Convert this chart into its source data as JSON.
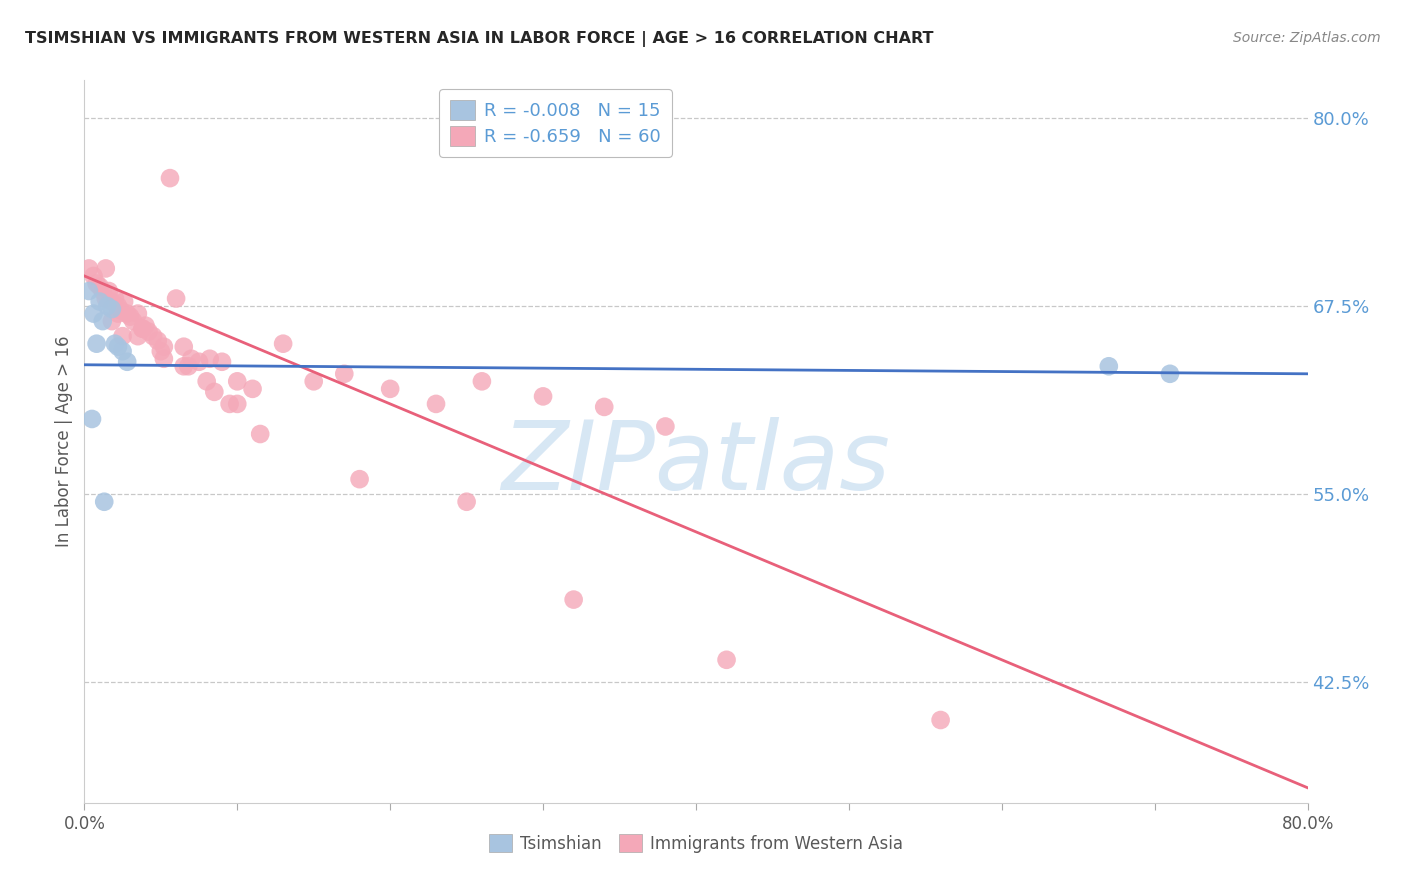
{
  "title": "TSIMSHIAN VS IMMIGRANTS FROM WESTERN ASIA IN LABOR FORCE | AGE > 16 CORRELATION CHART",
  "source": "Source: ZipAtlas.com",
  "ylabel": "In Labor Force | Age > 16",
  "xlim": [
    0.0,
    0.8
  ],
  "ylim": [
    0.345,
    0.825
  ],
  "yticks": [
    0.425,
    0.55,
    0.675,
    0.8
  ],
  "ytick_labels": [
    "42.5%",
    "55.0%",
    "67.5%",
    "80.0%"
  ],
  "xticks": [
    0.0,
    0.1,
    0.2,
    0.3,
    0.4,
    0.5,
    0.6,
    0.7,
    0.8
  ],
  "xtick_labels": [
    "0.0%",
    "",
    "",
    "",
    "",
    "",
    "",
    "",
    "80.0%"
  ],
  "background_color": "#ffffff",
  "grid_color": "#c8c8c8",
  "watermark": "ZIPatlas",
  "watermark_color": "#bdd7ee",
  "blue_R": "-0.008",
  "blue_N": "15",
  "pink_R": "-0.659",
  "pink_N": "60",
  "blue_color": "#a8c4e0",
  "pink_color": "#f4a8b8",
  "blue_line_color": "#4472c4",
  "pink_line_color": "#e8607a",
  "tick_color": "#5b9bd5",
  "label_color": "#595959",
  "blue_x": [
    0.003,
    0.01,
    0.006,
    0.015,
    0.018,
    0.012,
    0.008,
    0.02,
    0.022,
    0.025,
    0.028,
    0.67,
    0.71,
    0.005,
    0.013
  ],
  "blue_y": [
    0.685,
    0.678,
    0.67,
    0.675,
    0.673,
    0.665,
    0.65,
    0.65,
    0.648,
    0.645,
    0.638,
    0.635,
    0.63,
    0.6,
    0.545
  ],
  "pink_x": [
    0.003,
    0.006,
    0.008,
    0.01,
    0.012,
    0.014,
    0.016,
    0.018,
    0.02,
    0.022,
    0.024,
    0.026,
    0.028,
    0.03,
    0.032,
    0.035,
    0.038,
    0.04,
    0.042,
    0.045,
    0.048,
    0.052,
    0.056,
    0.06,
    0.065,
    0.07,
    0.075,
    0.082,
    0.09,
    0.1,
    0.11,
    0.13,
    0.15,
    0.17,
    0.2,
    0.23,
    0.26,
    0.3,
    0.34,
    0.38,
    0.014,
    0.022,
    0.035,
    0.05,
    0.065,
    0.08,
    0.095,
    0.115,
    0.25,
    0.56,
    0.018,
    0.025,
    0.038,
    0.052,
    0.068,
    0.085,
    0.1,
    0.18,
    0.32,
    0.42
  ],
  "pink_y": [
    0.7,
    0.695,
    0.69,
    0.688,
    0.685,
    0.68,
    0.685,
    0.678,
    0.68,
    0.675,
    0.672,
    0.678,
    0.67,
    0.668,
    0.665,
    0.67,
    0.66,
    0.662,
    0.658,
    0.655,
    0.652,
    0.648,
    0.76,
    0.68,
    0.648,
    0.64,
    0.638,
    0.64,
    0.638,
    0.625,
    0.62,
    0.65,
    0.625,
    0.63,
    0.62,
    0.61,
    0.625,
    0.615,
    0.608,
    0.595,
    0.7,
    0.67,
    0.655,
    0.645,
    0.635,
    0.625,
    0.61,
    0.59,
    0.545,
    0.4,
    0.665,
    0.655,
    0.66,
    0.64,
    0.635,
    0.618,
    0.61,
    0.56,
    0.48,
    0.44
  ],
  "blue_line_x": [
    0.0,
    0.8
  ],
  "blue_line_y": [
    0.636,
    0.63
  ],
  "pink_line_x": [
    0.0,
    0.8
  ],
  "pink_line_y": [
    0.695,
    0.355
  ]
}
